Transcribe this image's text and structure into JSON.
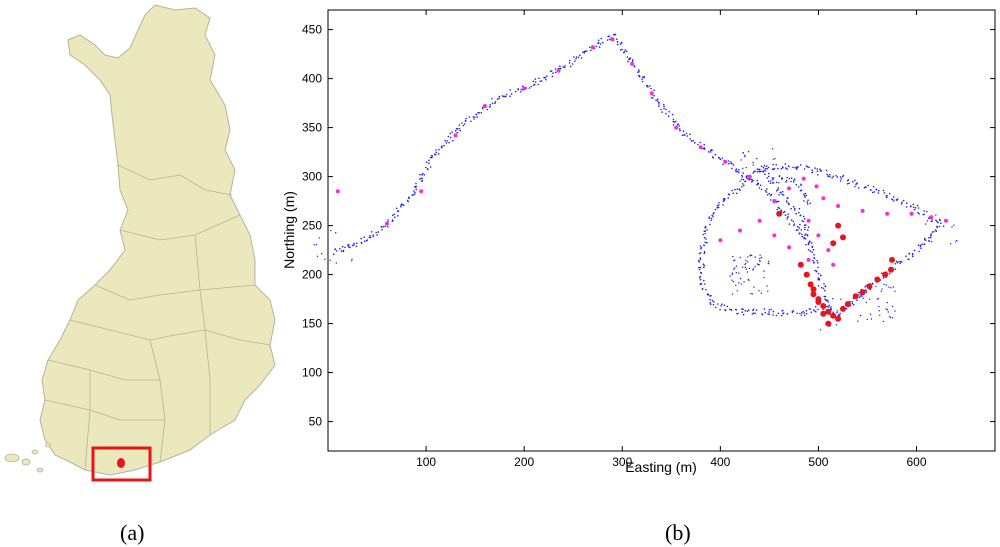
{
  "captions": {
    "a": "(a)",
    "b": "(b)"
  },
  "map": {
    "fill_color": "#ebe8bd",
    "border_color": "#b6b39a",
    "highlight_box_color": "#e8141b",
    "marker_color": "#e8141b"
  },
  "chart_data": {
    "type": "scatter",
    "xlabel": "Easting (m)",
    "ylabel": "Northing (m)",
    "xlim": [
      0,
      680
    ],
    "ylim": [
      20,
      470
    ],
    "xticks": [
      100,
      200,
      300,
      400,
      500,
      600
    ],
    "yticks": [
      50,
      100,
      150,
      200,
      250,
      300,
      350,
      400,
      450
    ],
    "grid": false,
    "series": [
      {
        "color": "#1f1fe6",
        "paths": [
          [
            [
              5,
              222
            ],
            [
              30,
              232
            ],
            [
              60,
              250
            ],
            [
              85,
              280
            ],
            [
              110,
              325
            ],
            [
              140,
              355
            ],
            [
              175,
              380
            ],
            [
              210,
              395
            ],
            [
              245,
              415
            ],
            [
              290,
              445
            ],
            [
              305,
              425
            ],
            [
              330,
              385
            ],
            [
              360,
              345
            ],
            [
              390,
              325
            ],
            [
              420,
              305
            ],
            [
              445,
              288
            ],
            [
              460,
              270
            ],
            [
              475,
              252
            ],
            [
              490,
              232
            ],
            [
              500,
              205
            ],
            [
              505,
              182
            ],
            [
              510,
              165
            ],
            [
              520,
              158
            ],
            [
              535,
              172
            ],
            [
              555,
              190
            ],
            [
              575,
              205
            ],
            [
              600,
              225
            ],
            [
              625,
              252
            ],
            [
              600,
              268
            ],
            [
              560,
              285
            ],
            [
              520,
              300
            ],
            [
              480,
              310
            ],
            [
              440,
              310
            ]
          ],
          [
            [
              440,
              310
            ],
            [
              420,
              290
            ],
            [
              395,
              268
            ],
            [
              385,
              245
            ],
            [
              380,
              218
            ],
            [
              382,
              188
            ],
            [
              395,
              168
            ],
            [
              420,
              162
            ],
            [
              450,
              162
            ],
            [
              480,
              160
            ],
            [
              500,
              165
            ]
          ],
          [
            [
              440,
              310
            ],
            [
              455,
              292
            ],
            [
              470,
              275
            ],
            [
              480,
              262
            ],
            [
              488,
              245
            ],
            [
              490,
              230
            ]
          ],
          [
            [
              455,
              300
            ],
            [
              475,
              295
            ],
            [
              485,
              285
            ],
            [
              490,
              270
            ]
          ]
        ],
        "clusters": [
          {
            "x": 5,
            "y": 225,
            "count": 14
          },
          {
            "x": 440,
            "y": 310,
            "count": 20
          },
          {
            "x": 510,
            "y": 160,
            "count": 18
          },
          {
            "x": 625,
            "y": 250,
            "count": 14
          },
          {
            "x": 430,
            "y": 200,
            "count": 60
          },
          {
            "x": 560,
            "y": 170,
            "count": 40
          }
        ]
      },
      {
        "color": "#ff2bd8",
        "points": [
          [
            10,
            285
          ],
          [
            60,
            252
          ],
          [
            95,
            285
          ],
          [
            130,
            342
          ],
          [
            160,
            372
          ],
          [
            200,
            390
          ],
          [
            235,
            408
          ],
          [
            270,
            432
          ],
          [
            290,
            440
          ],
          [
            310,
            415
          ],
          [
            330,
            385
          ],
          [
            355,
            350
          ],
          [
            380,
            330
          ],
          [
            405,
            315
          ],
          [
            430,
            300
          ],
          [
            455,
            275
          ],
          [
            470,
            288
          ],
          [
            485,
            298
          ],
          [
            498,
            290
          ],
          [
            505,
            278
          ],
          [
            520,
            270
          ],
          [
            545,
            265
          ],
          [
            570,
            262
          ],
          [
            595,
            262
          ],
          [
            615,
            258
          ],
          [
            630,
            255
          ],
          [
            490,
            255
          ],
          [
            500,
            240
          ],
          [
            510,
            225
          ],
          [
            515,
            210
          ],
          [
            490,
            215
          ],
          [
            470,
            228
          ],
          [
            455,
            240
          ],
          [
            440,
            255
          ],
          [
            420,
            245
          ],
          [
            400,
            235
          ]
        ]
      },
      {
        "color": "#e8141b",
        "points": [
          [
            460,
            262
          ],
          [
            482,
            210
          ],
          [
            488,
            200
          ],
          [
            492,
            190
          ],
          [
            495,
            180
          ],
          [
            500,
            172
          ],
          [
            505,
            168
          ],
          [
            510,
            162
          ],
          [
            515,
            158
          ],
          [
            520,
            155
          ],
          [
            510,
            150
          ],
          [
            505,
            160
          ],
          [
            500,
            175
          ],
          [
            495,
            185
          ],
          [
            525,
            165
          ],
          [
            530,
            170
          ],
          [
            538,
            178
          ],
          [
            545,
            182
          ],
          [
            552,
            188
          ],
          [
            560,
            195
          ],
          [
            568,
            200
          ],
          [
            574,
            205
          ],
          [
            575,
            215
          ],
          [
            520,
            250
          ],
          [
            525,
            238
          ],
          [
            515,
            232
          ]
        ]
      }
    ]
  }
}
